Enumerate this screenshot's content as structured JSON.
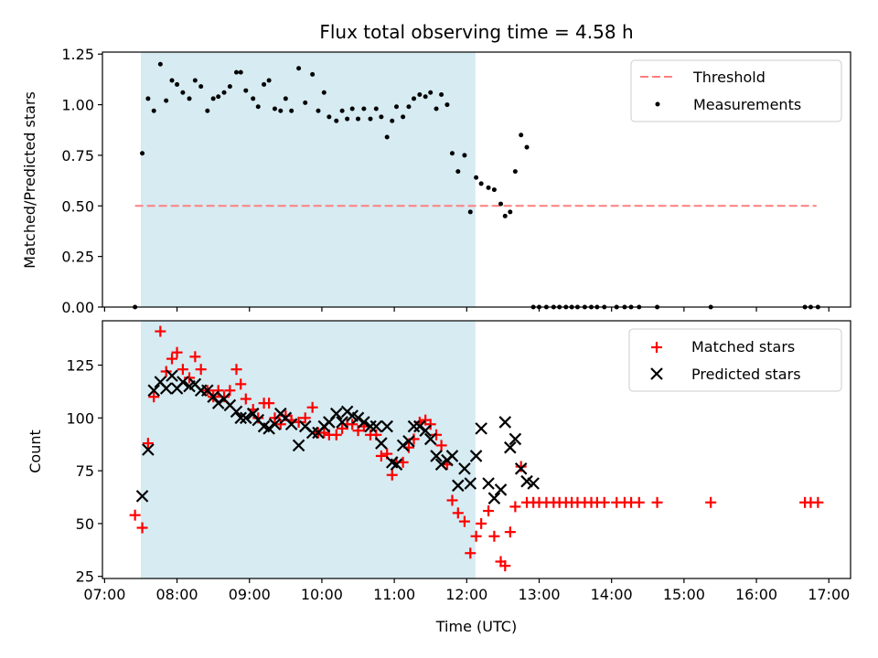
{
  "title": "Flux total observing time = 4.58 h",
  "shaded_band": {
    "from_hour": 7.5,
    "to_hour": 12.12,
    "color": "#ADD8E6"
  },
  "chart_data": [
    {
      "type": "scatter",
      "panel": "top",
      "ylabel": "Matched/Predicted stars",
      "xlabel": "",
      "xlim": [
        6.97,
        17.3
      ],
      "ylim": [
        0.0,
        1.26
      ],
      "yticks": [
        0.0,
        0.25,
        0.5,
        0.75,
        1.0,
        1.25
      ],
      "ytick_labels": [
        "0.00",
        "0.25",
        "0.50",
        "0.75",
        "1.00",
        "1.25"
      ],
      "legend": [
        {
          "label": "Threshold",
          "style": "dashed-line",
          "color": "#FF7F7F"
        },
        {
          "label": "Measurements",
          "style": "dot",
          "color": "#000000"
        }
      ],
      "threshold": {
        "y": 0.5,
        "x_from": 7.42,
        "x_to": 16.83,
        "color": "#FF7F7F"
      },
      "series": [
        {
          "name": "Measurements",
          "color": "#000000",
          "x": [
            7.42,
            7.52,
            7.6,
            7.68,
            7.77,
            7.85,
            7.93,
            8.0,
            8.08,
            8.17,
            8.25,
            8.33,
            8.42,
            8.5,
            8.57,
            8.65,
            8.73,
            8.82,
            8.88,
            8.95,
            9.05,
            9.12,
            9.2,
            9.27,
            9.35,
            9.43,
            9.5,
            9.58,
            9.68,
            9.77,
            9.87,
            9.95,
            10.03,
            10.1,
            10.2,
            10.28,
            10.35,
            10.42,
            10.5,
            10.58,
            10.67,
            10.75,
            10.82,
            10.9,
            10.97,
            11.03,
            11.12,
            11.2,
            11.27,
            11.35,
            11.43,
            11.5,
            11.58,
            11.65,
            11.73,
            11.8,
            11.88,
            11.97,
            12.05,
            12.13,
            12.2,
            12.3,
            12.38,
            12.47,
            12.53,
            12.6,
            12.67,
            12.75,
            12.83,
            12.92,
            13.0,
            13.1,
            13.2,
            13.28,
            13.37,
            13.45,
            13.53,
            13.63,
            13.72,
            13.8,
            13.9,
            14.07,
            14.18,
            14.27,
            14.38,
            14.63,
            15.37,
            16.67,
            16.75,
            16.85
          ],
          "y": [
            0.0,
            0.76,
            1.03,
            0.97,
            1.2,
            1.02,
            1.12,
            1.1,
            1.06,
            1.03,
            1.12,
            1.09,
            0.97,
            1.03,
            1.04,
            1.06,
            1.09,
            1.16,
            1.16,
            1.07,
            1.03,
            0.99,
            1.1,
            1.12,
            0.98,
            0.97,
            1.03,
            0.97,
            1.18,
            1.01,
            1.15,
            0.97,
            1.06,
            0.94,
            0.92,
            0.97,
            0.93,
            0.98,
            0.93,
            0.98,
            0.93,
            0.98,
            0.94,
            0.84,
            0.92,
            0.99,
            0.94,
            0.99,
            1.03,
            1.05,
            1.04,
            1.06,
            0.98,
            1.05,
            1.0,
            0.76,
            0.67,
            0.75,
            0.47,
            0.64,
            0.61,
            0.59,
            0.58,
            0.51,
            0.45,
            0.47,
            0.67,
            0.85,
            0.79,
            0.0,
            0.0,
            0.0,
            0.0,
            0.0,
            0.0,
            0.0,
            0.0,
            0.0,
            0.0,
            0.0,
            0.0,
            0.0,
            0.0,
            0.0,
            0.0,
            0.0,
            0.0,
            0.0,
            0.0,
            0.0
          ]
        }
      ]
    },
    {
      "type": "scatter",
      "panel": "bottom",
      "ylabel": "Count",
      "xlabel": "Time (UTC)",
      "xlim": [
        6.97,
        17.3
      ],
      "ylim": [
        24,
        146
      ],
      "yticks": [
        25,
        50,
        75,
        100,
        125
      ],
      "ytick_labels": [
        "25",
        "50",
        "75",
        "100",
        "125"
      ],
      "xticks": [
        7,
        8,
        9,
        10,
        11,
        12,
        13,
        14,
        15,
        16,
        17
      ],
      "xtick_labels": [
        "07:00",
        "08:00",
        "09:00",
        "10:00",
        "11:00",
        "12:00",
        "13:00",
        "14:00",
        "15:00",
        "16:00",
        "17:00"
      ],
      "legend": [
        {
          "label": "Matched stars",
          "style": "plus",
          "color": "#FF0000"
        },
        {
          "label": "Predicted stars",
          "style": "x",
          "color": "#000000"
        }
      ],
      "series": [
        {
          "name": "Matched stars",
          "marker": "plus",
          "color": "#FF0000",
          "x": [
            7.42,
            7.52,
            7.6,
            7.68,
            7.77,
            7.85,
            7.93,
            8.0,
            8.08,
            8.17,
            8.25,
            8.33,
            8.42,
            8.5,
            8.57,
            8.65,
            8.73,
            8.82,
            8.88,
            8.95,
            9.05,
            9.12,
            9.2,
            9.27,
            9.35,
            9.43,
            9.5,
            9.58,
            9.68,
            9.77,
            9.87,
            9.95,
            10.03,
            10.1,
            10.2,
            10.28,
            10.35,
            10.42,
            10.5,
            10.58,
            10.67,
            10.75,
            10.82,
            10.9,
            10.97,
            11.03,
            11.12,
            11.2,
            11.27,
            11.35,
            11.43,
            11.5,
            11.58,
            11.65,
            11.73,
            11.8,
            11.88,
            11.97,
            12.05,
            12.13,
            12.2,
            12.3,
            12.38,
            12.47,
            12.53,
            12.6,
            12.67,
            12.75,
            12.83,
            12.92,
            13.0,
            13.1,
            13.2,
            13.28,
            13.37,
            13.45,
            13.53,
            13.63,
            13.72,
            13.8,
            13.9,
            14.07,
            14.18,
            14.27,
            14.38,
            14.63,
            15.37,
            16.67,
            16.75,
            16.85
          ],
          "y": [
            54,
            48,
            88,
            110,
            141,
            122,
            128,
            131,
            123,
            119,
            129,
            123,
            113,
            110,
            113,
            110,
            113,
            123,
            116,
            109,
            104,
            100,
            107,
            107,
            100,
            97,
            101,
            99,
            98,
            100,
            105,
            93,
            93,
            92,
            92,
            95,
            97,
            97,
            94,
            96,
            92,
            92,
            82,
            83,
            73,
            79,
            79,
            86,
            90,
            98,
            99,
            97,
            92,
            87,
            78,
            61,
            55,
            51,
            36,
            44,
            50,
            56,
            44,
            32,
            30,
            46,
            58,
            77,
            60,
            60,
            60,
            60,
            60,
            60,
            60,
            60,
            60,
            60,
            60,
            60,
            60,
            60,
            60,
            60,
            60,
            60,
            60,
            60,
            60,
            60
          ]
        },
        {
          "name": "Predicted stars",
          "marker": "x",
          "color": "#000000",
          "x": [
            7.52,
            7.6,
            7.68,
            7.77,
            7.85,
            7.93,
            8.0,
            8.08,
            8.17,
            8.25,
            8.33,
            8.42,
            8.5,
            8.57,
            8.65,
            8.73,
            8.82,
            8.88,
            8.95,
            9.05,
            9.12,
            9.2,
            9.27,
            9.35,
            9.43,
            9.5,
            9.58,
            9.68,
            9.77,
            9.87,
            9.95,
            10.03,
            10.1,
            10.2,
            10.28,
            10.35,
            10.42,
            10.5,
            10.58,
            10.67,
            10.75,
            10.82,
            10.9,
            10.97,
            11.03,
            11.12,
            11.2,
            11.27,
            11.35,
            11.43,
            11.5,
            11.58,
            11.65,
            11.73,
            11.8,
            11.88,
            11.97,
            12.05,
            12.13,
            12.2,
            12.3,
            12.38,
            12.47,
            12.53,
            12.6,
            12.67,
            12.75,
            12.83,
            12.92
          ],
          "y": [
            63,
            85,
            113,
            117,
            114,
            120,
            114,
            117,
            115,
            116,
            113,
            113,
            110,
            107,
            109,
            106,
            103,
            100,
            100,
            102,
            99,
            96,
            95,
            97,
            102,
            100,
            97,
            87,
            96,
            93,
            93,
            96,
            98,
            102,
            98,
            103,
            101,
            100,
            98,
            96,
            96,
            88,
            96,
            79,
            78,
            87,
            89,
            96,
            96,
            94,
            90,
            82,
            78,
            80,
            82,
            68,
            76,
            69,
            82,
            95,
            69,
            62,
            66,
            98,
            86,
            90,
            76,
            70,
            69
          ]
        }
      ]
    }
  ]
}
